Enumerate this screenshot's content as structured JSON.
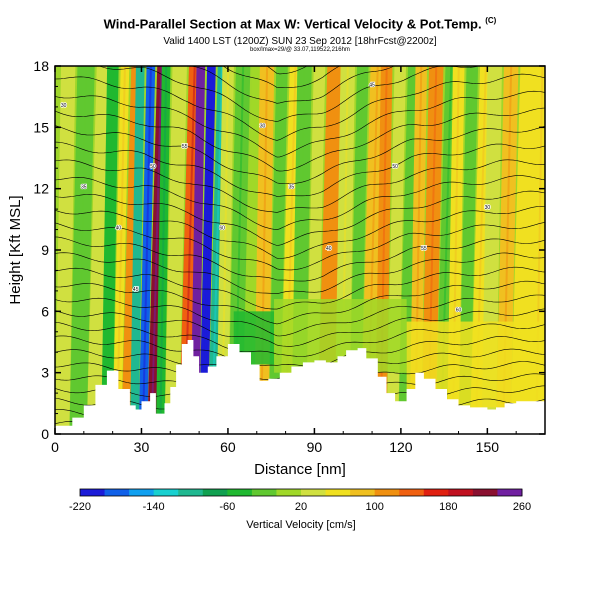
{
  "title": "Wind-Parallel Section at Max W: Vertical Velocity & Pot.Temp.",
  "title_mark": "(C)",
  "subtitle": "Valid 1400 LST (1200Z) SUN 23 Sep 2012 [18hrFcst@2200z]",
  "info_line": "box/lmax=29/@ 33.07,119522,216hm",
  "chart_data": {
    "type": "heatmap",
    "xlabel": "Distance [nm]",
    "ylabel": "Height [Kft MSL]",
    "xlim": [
      0,
      170
    ],
    "ylim": [
      0,
      18
    ],
    "x_ticks": [
      "0",
      "30",
      "60",
      "90",
      "120",
      "150"
    ],
    "y_ticks": [
      "0",
      "3",
      "6",
      "9",
      "12",
      "15",
      "18"
    ],
    "colorbar_label": "Vertical Velocity [cm/s]",
    "colorbar_ticks": [
      "-220",
      "-140",
      "-60",
      "20",
      "100",
      "180",
      "260"
    ],
    "colorbar_range": [
      -220,
      260
    ],
    "colorbar_colors": [
      "#1b1bd8",
      "#1060e8",
      "#10a0f0",
      "#18d0d0",
      "#20b890",
      "#10a050",
      "#20b830",
      "#60c830",
      "#a0d828",
      "#d0e040",
      "#f0e020",
      "#f0c020",
      "#f09010",
      "#f06010",
      "#e02010",
      "#c01020",
      "#8a1030",
      "#7020a0"
    ],
    "terrain_top_kft": [
      [
        0,
        0.4
      ],
      [
        6,
        0.8
      ],
      [
        10,
        1.4
      ],
      [
        14,
        2.4
      ],
      [
        18,
        3.1
      ],
      [
        22,
        2.2
      ],
      [
        26,
        1.4
      ],
      [
        28,
        1.2
      ],
      [
        30,
        1.6
      ],
      [
        33,
        2.0
      ],
      [
        35,
        1.0
      ],
      [
        38,
        1.5
      ],
      [
        40,
        2.3
      ],
      [
        42,
        3.4
      ],
      [
        44,
        4.4
      ],
      [
        46,
        4.6
      ],
      [
        48,
        3.8
      ],
      [
        50,
        3.0
      ],
      [
        53,
        3.3
      ],
      [
        56,
        3.8
      ],
      [
        60,
        4.4
      ],
      [
        64,
        4.0
      ],
      [
        68,
        3.4
      ],
      [
        71,
        2.6
      ],
      [
        74,
        2.7
      ],
      [
        78,
        3.0
      ],
      [
        82,
        3.3
      ],
      [
        86,
        3.5
      ],
      [
        90,
        3.6
      ],
      [
        94,
        3.5
      ],
      [
        98,
        3.8
      ],
      [
        101,
        4.1
      ],
      [
        105,
        4.2
      ],
      [
        108,
        3.7
      ],
      [
        112,
        2.8
      ],
      [
        115,
        2.0
      ],
      [
        118,
        1.6
      ],
      [
        122,
        2.2
      ],
      [
        125,
        3.0
      ],
      [
        128,
        2.7
      ],
      [
        132,
        2.2
      ],
      [
        136,
        1.7
      ],
      [
        140,
        1.4
      ],
      [
        144,
        1.3
      ],
      [
        147,
        1.3
      ],
      [
        150,
        1.2
      ],
      [
        153,
        1.3
      ],
      [
        156,
        1.5
      ],
      [
        160,
        1.6
      ],
      [
        165,
        1.6
      ],
      [
        170,
        1.5
      ]
    ],
    "velocity_bands": [
      {
        "x": 0,
        "w": 5,
        "v": 20
      },
      {
        "x": 5,
        "w": 6,
        "v": -20
      },
      {
        "x": 11,
        "w": 5,
        "v": 20
      },
      {
        "x": 16,
        "w": 4,
        "v": -40
      },
      {
        "x": 20,
        "w": 3,
        "v": 60
      },
      {
        "x": 23,
        "w": 3,
        "v": 100
      },
      {
        "x": 26,
        "w": 3,
        "v": -90
      },
      {
        "x": 29,
        "w": 3,
        "v": -170
      },
      {
        "x": 32,
        "w": 3,
        "v": 220
      },
      {
        "x": 35,
        "w": 3,
        "v": -60
      },
      {
        "x": 38,
        "w": 5,
        "v": 30
      },
      {
        "x": 43,
        "w": 4,
        "v": 150
      },
      {
        "x": 47,
        "w": 3,
        "v": 245
      },
      {
        "x": 50,
        "w": 3,
        "v": -200
      },
      {
        "x": 53,
        "w": 3,
        "v": -110
      },
      {
        "x": 56,
        "w": 4,
        "v": 40
      },
      {
        "x": 60,
        "w": 5,
        "v": -30
      },
      {
        "x": 65,
        "w": 4,
        "v": 10
      },
      {
        "x": 69,
        "w": 5,
        "v": 90
      },
      {
        "x": 74,
        "w": 4,
        "v": -25
      },
      {
        "x": 78,
        "w": 4,
        "v": 60
      },
      {
        "x": 82,
        "w": 5,
        "v": -20
      },
      {
        "x": 87,
        "w": 4,
        "v": 30
      },
      {
        "x": 91,
        "w": 6,
        "v": 100
      },
      {
        "x": 97,
        "w": 5,
        "v": 40
      },
      {
        "x": 102,
        "w": 4,
        "v": -15
      },
      {
        "x": 106,
        "w": 5,
        "v": 85
      },
      {
        "x": 111,
        "w": 4,
        "v": 110
      },
      {
        "x": 115,
        "w": 4,
        "v": 20
      },
      {
        "x": 119,
        "w": 4,
        "v": -20
      },
      {
        "x": 123,
        "w": 4,
        "v": 80
      },
      {
        "x": 127,
        "w": 5,
        "v": 110
      },
      {
        "x": 132,
        "w": 4,
        "v": -30
      },
      {
        "x": 136,
        "w": 4,
        "v": 70
      },
      {
        "x": 140,
        "w": 4,
        "v": -10
      },
      {
        "x": 144,
        "w": 4,
        "v": 60
      },
      {
        "x": 148,
        "w": 5,
        "v": 30
      },
      {
        "x": 153,
        "w": 5,
        "v": 90
      },
      {
        "x": 158,
        "w": 6,
        "v": 50
      },
      {
        "x": 164,
        "w": 6,
        "v": 70
      }
    ],
    "velocity_lowlevel": [
      {
        "x": 62,
        "w": 14,
        "y0": 3.4,
        "y1": 6.0,
        "v": -35
      },
      {
        "x": 76,
        "w": 46,
        "y0": 3.0,
        "y1": 6.6,
        "v": 10
      },
      {
        "x": 122,
        "w": 48,
        "y0": 1.3,
        "y1": 5.5,
        "v": 55
      }
    ],
    "theta_contours": {
      "count": 34,
      "base_kft": 0.5,
      "spacing_kft": 0.55,
      "drift": [
        0,
        0.3,
        0.6,
        1.2,
        2.2,
        3.2,
        2.6,
        1.6,
        0.8,
        0.4,
        0.1,
        0.0
      ]
    },
    "theta_labels": [
      "30",
      "35",
      "40",
      "45",
      "50",
      "55",
      "60"
    ]
  }
}
